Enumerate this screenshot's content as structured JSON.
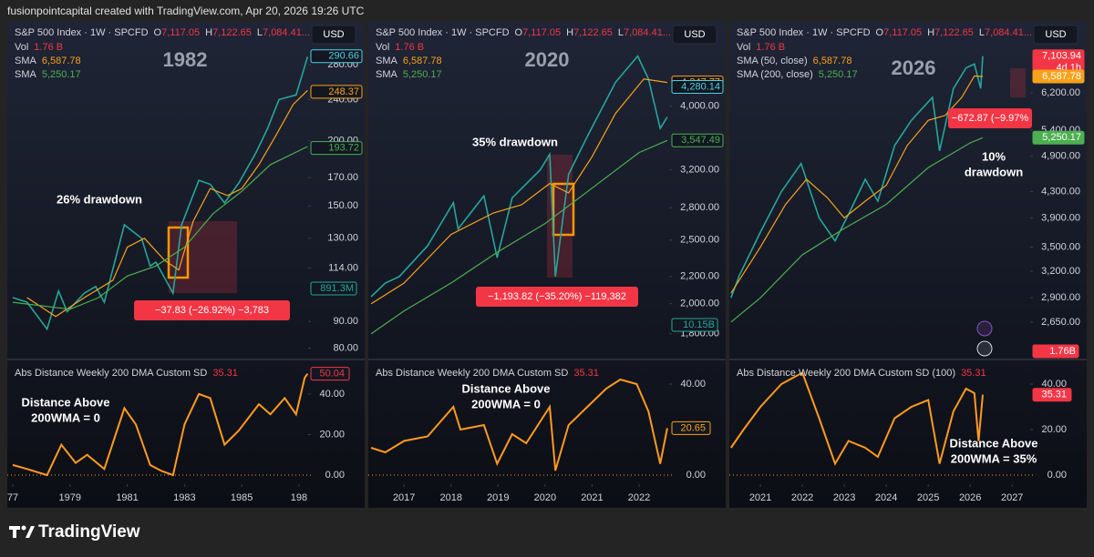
{
  "header": "fusionpointcapital created with TradingView.com, Apr 20, 2026 19:26 UTC",
  "footer": {
    "logo": "TradingView"
  },
  "chart_data": [
    {
      "type": "line",
      "legend": {
        "symbol": "S&P 500 Index · 1W · SPCFD",
        "o_label": "O",
        "o": "7,117.05",
        "h_label": "H",
        "h": "7,122.65",
        "l_label": "L",
        "l": "7,084.41...",
        "vol_label": "Vol",
        "vol": "1.76 B",
        "sma1_label": "SMA",
        "sma1": "6,587.78",
        "sma2_label": "SMA",
        "sma2": "5,250.17"
      },
      "currency": "USD",
      "title": "1982",
      "annotation": [
        "26% drawdown"
      ],
      "measure": "−37.83 (−26.92%) −3,783",
      "log": true,
      "xlim": [
        1976.81,
        1987.32
      ],
      "xticks": [
        {
          "value": 1977,
          "label": "77"
        },
        1979,
        1981,
        1983,
        1985,
        {
          "value": 1987,
          "label": "198"
        }
      ],
      "ylim": [
        77,
        333
      ],
      "yticks": [
        {
          "value": 80,
          "label": "80.00"
        },
        {
          "value": 90,
          "label": "90.00"
        },
        {
          "value": 114,
          "label": "114.00"
        },
        {
          "value": 130,
          "label": "130.00"
        },
        {
          "value": 150,
          "label": "150.00"
        },
        {
          "value": 170,
          "label": "170.00"
        },
        {
          "value": 200,
          "label": "200.00"
        },
        {
          "value": 240,
          "label": "240.00"
        },
        {
          "value": 280,
          "label": "280.00"
        }
      ],
      "badges": [
        {
          "value": 290.66,
          "label": "290.66",
          "color": "#4dd0e1",
          "filled": false
        },
        {
          "value": 248.37,
          "label": "248.37",
          "color": "#f7a21b",
          "filled": false
        },
        {
          "value": 193.72,
          "label": "193.72",
          "color": "#4caf50",
          "filled": false
        }
      ],
      "volume_badge": {
        "text": "891.3M",
        "color": "#26a69a",
        "filled": false
      },
      "series": [
        {
          "color": "#26a69a",
          "x": [
            1977.0,
            1977.5,
            1978.0,
            1978.2,
            1978.6,
            1978.9,
            1979.5,
            1979.9,
            1980.2,
            1980.9,
            1981.5,
            1981.8,
            1982.0,
            1982.6,
            1982.9,
            1983.5,
            1983.9,
            1984.4,
            1984.9,
            1985.5,
            1985.9,
            1986.3,
            1986.9,
            1987.3
          ],
          "values": [
            100,
            98,
            90,
            87,
            103,
            94,
            102,
            105,
            98,
            138,
            130,
            115,
            117,
            102,
            138,
            168,
            165,
            152,
            166,
            190,
            211,
            240,
            245,
            290
          ]
        },
        {
          "color": "#f7a21b",
          "x": [
            1977.5,
            1978.5,
            1979.5,
            1980.5,
            1981.0,
            1981.6,
            1982.3,
            1982.8,
            1983.3,
            1983.9,
            1984.5,
            1985.0,
            1985.6,
            1986.2,
            1986.8,
            1987.3
          ],
          "values": [
            100,
            92,
            100,
            108,
            125,
            130,
            118,
            113,
            140,
            162,
            157,
            162,
            180,
            205,
            235,
            250
          ]
        },
        {
          "color": "#4caf50",
          "x": [
            1977.0,
            1979.0,
            1980.0,
            1981.0,
            1982.0,
            1983.0,
            1984.0,
            1985.0,
            1986.0,
            1987.3
          ],
          "values": [
            98,
            95,
            100,
            110,
            115,
            125,
            145,
            160,
            180,
            195
          ]
        }
      ],
      "indicator": {
        "title": "Abs Distance Weekly 200 DMA Custom SD",
        "value": "35.31",
        "annotation": [
          "Distance Above",
          "200WMA = 0"
        ],
        "color": "#ff9a1f",
        "ylim": [
          -4.5,
          55.7
        ],
        "yticks": [
          {
            "value": 0,
            "label": "0.00"
          },
          {
            "value": 20,
            "label": "20.00"
          },
          {
            "value": 40,
            "label": "40.00"
          }
        ],
        "badge": {
          "value": 50.04,
          "label": "50.04",
          "color": "#f23645",
          "filled": false
        },
        "x": [
          1977.0,
          1977.5,
          1978.2,
          1978.7,
          1979.2,
          1979.6,
          1980.2,
          1980.9,
          1981.3,
          1981.8,
          1982.2,
          1982.6,
          1983.0,
          1983.5,
          1983.9,
          1984.4,
          1984.9,
          1985.6,
          1986.0,
          1986.5,
          1986.9,
          1987.2,
          1987.3
        ],
        "values": [
          5,
          3,
          0,
          15,
          6,
          10,
          3,
          33,
          25,
          5,
          2,
          0,
          25,
          40,
          38,
          15,
          22,
          35,
          30,
          38,
          30,
          48,
          50.04
        ]
      }
    },
    {
      "type": "line",
      "legend": {
        "symbol": "S&P 500 Index · 1W · SPCFD",
        "o_label": "O",
        "o": "7,117.05",
        "h_label": "H",
        "h": "7,122.65",
        "l_label": "L",
        "l": "7,084.41...",
        "vol_label": "Vol",
        "vol": "1.76 B",
        "sma1_label": "SMA",
        "sma1": "6,587.78",
        "sma2_label": "SMA",
        "sma2": "5,250.17"
      },
      "currency": "USD",
      "title": "2020",
      "annotation": [
        "35% drawdown"
      ],
      "measure": "−1,193.82 (−35.20%) −119,382",
      "log": true,
      "xlim": [
        2016.24,
        2022.64
      ],
      "xticks": [
        2017,
        2018,
        2019,
        2020,
        2021,
        2022
      ],
      "ylim": [
        1660,
        5310
      ],
      "yticks": [
        {
          "value": 1800,
          "label": "1,800.00"
        },
        {
          "value": 2000,
          "label": "2,000.00"
        },
        {
          "value": 2200,
          "label": "2,200.00"
        },
        {
          "value": 2500,
          "label": "2,500.00"
        },
        {
          "value": 2800,
          "label": "2,800.00"
        },
        {
          "value": 3200,
          "label": "3,200.00"
        },
        {
          "value": 4000,
          "label": "4,000.00"
        }
      ],
      "badges": [
        {
          "value": 4347.77,
          "label": "4,347.77",
          "color": "#f7a21b",
          "filled": false
        },
        {
          "value": 4280.14,
          "label": "4,280.14",
          "color": "#4dd0e1",
          "filled": false
        },
        {
          "value": 3547.49,
          "label": "3,547.49",
          "color": "#4caf50",
          "filled": false
        }
      ],
      "volume_badge": {
        "text": "10.15B",
        "color": "#26a69a",
        "filled": false
      },
      "series": [
        {
          "color": "#26a69a",
          "x": [
            2016.3,
            2016.6,
            2016.9,
            2017.5,
            2018.05,
            2018.15,
            2018.7,
            2018.98,
            2019.3,
            2019.9,
            2020.1,
            2020.22,
            2020.5,
            2020.9,
            2021.5,
            2021.97,
            2022.2,
            2022.45,
            2022.6
          ],
          "values": [
            2050,
            2150,
            2200,
            2450,
            2850,
            2600,
            2920,
            2350,
            2900,
            3200,
            3380,
            2200,
            3150,
            3600,
            4350,
            4770,
            4400,
            3700,
            3850
          ]
        },
        {
          "color": "#f7a21b",
          "x": [
            2016.3,
            2017.0,
            2018.0,
            2018.9,
            2019.5,
            2020.1,
            2020.5,
            2021.0,
            2021.5,
            2022.1,
            2022.6
          ],
          "values": [
            2000,
            2150,
            2550,
            2750,
            2830,
            3050,
            2950,
            3350,
            3900,
            4400,
            4347.77
          ]
        },
        {
          "color": "#4caf50",
          "x": [
            2016.3,
            2017.0,
            2018.0,
            2019.0,
            2020.0,
            2021.0,
            2022.0,
            2022.6
          ],
          "values": [
            1800,
            1950,
            2150,
            2400,
            2650,
            3000,
            3400,
            3547.49
          ]
        }
      ],
      "indicator": {
        "title": "Abs Distance Weekly 200 DMA Custom SD",
        "value": "35.31",
        "annotation": [
          "Distance Above",
          "200WMA = 0"
        ],
        "color": "#ff9a1f",
        "ylim": [
          -4,
          49.6
        ],
        "yticks": [
          {
            "value": 0,
            "label": "0.00"
          },
          {
            "value": 40,
            "label": "40.00"
          }
        ],
        "badge": {
          "value": 20.65,
          "label": "20.65",
          "color": "#f7a21b",
          "filled": false
        },
        "x": [
          2016.3,
          2016.6,
          2017.0,
          2017.5,
          2018.05,
          2018.2,
          2018.7,
          2018.98,
          2019.3,
          2019.6,
          2020.1,
          2020.22,
          2020.5,
          2020.9,
          2021.3,
          2021.6,
          2021.95,
          2022.2,
          2022.45,
          2022.6
        ],
        "values": [
          12,
          10,
          15,
          17,
          30,
          20,
          22,
          5,
          18,
          14,
          30,
          2,
          22,
          30,
          38,
          42,
          40,
          28,
          5,
          20.65
        ]
      }
    },
    {
      "type": "line",
      "legend": {
        "symbol": "S&P 500 Index · 1W · SPCFD",
        "o_label": "O",
        "o": "7,117.05",
        "h_label": "H",
        "h": "7,122.65",
        "l_label": "L",
        "l": "7,084.41...",
        "vol_label": "Vol",
        "vol": "1.76 B",
        "sma1_label": "SMA (50, close)",
        "sma1": "6,587.78",
        "sma2_label": "SMA (200, close)",
        "sma2": "5,250.17"
      },
      "currency": "USD",
      "title": "2026",
      "annotation": [
        "10%",
        "drawdown"
      ],
      "measure": "−672.87 (−9.97%",
      "log": true,
      "xlim": [
        2020.26,
        2027.43
      ],
      "xticks": [
        2021,
        2022,
        2023,
        2024,
        2025,
        2026,
        2027
      ],
      "ylim": [
        2330,
        7960
      ],
      "yticks": [
        {
          "value": 2650,
          "label": "2,650.00"
        },
        {
          "value": 2900,
          "label": "2,900.00"
        },
        {
          "value": 3200,
          "label": "3,200.00"
        },
        {
          "value": 3500,
          "label": "3,500.00"
        },
        {
          "value": 3900,
          "label": "3,900.00"
        },
        {
          "value": 4300,
          "label": "4,300.00"
        },
        {
          "value": 4900,
          "label": "4,900.00"
        },
        {
          "value": 5400,
          "label": "5,400.00"
        },
        {
          "value": 6200,
          "label": "6,200.00"
        }
      ],
      "badges": [
        {
          "value": 7103.94,
          "label": "7,103.94",
          "sub": "4d 1h",
          "color": "#f23645",
          "filled": true
        },
        {
          "value": 6587.78,
          "label": "6,587.78",
          "color": "#f7a21b",
          "filled": true
        },
        {
          "value": 5250.17,
          "label": "5,250.17",
          "color": "#4caf50",
          "filled": true
        }
      ],
      "volume_badge": {
        "text": "1.76B",
        "color": "#f23645",
        "filled": true
      },
      "series": [
        {
          "color": "#26a69a",
          "x": [
            2020.3,
            2020.5,
            2021.0,
            2021.5,
            2021.97,
            2022.4,
            2022.78,
            2023.1,
            2023.5,
            2023.8,
            2024.2,
            2024.6,
            2025.1,
            2025.27,
            2025.6,
            2025.9,
            2026.1,
            2026.25,
            2026.3
          ],
          "values": [
            2900,
            3150,
            3700,
            4300,
            4770,
            3900,
            3580,
            3950,
            4500,
            4150,
            5100,
            5600,
            6100,
            5000,
            6300,
            6800,
            6900,
            6300,
            7103.94
          ]
        },
        {
          "color": "#f7a21b",
          "x": [
            2020.3,
            2021.0,
            2021.6,
            2022.1,
            2022.6,
            2023.0,
            2023.5,
            2024.0,
            2024.5,
            2025.0,
            2025.4,
            2025.8,
            2026.1,
            2026.3
          ],
          "values": [
            2950,
            3500,
            4100,
            4500,
            4200,
            3900,
            4150,
            4400,
            5100,
            5600,
            5700,
            6100,
            6600,
            6587.78
          ]
        },
        {
          "color": "#4caf50",
          "x": [
            2020.3,
            2021.0,
            2022.0,
            2023.0,
            2024.0,
            2025.0,
            2026.0,
            2026.3
          ],
          "values": [
            2650,
            2900,
            3400,
            3750,
            4100,
            4700,
            5150,
            5250.17
          ]
        }
      ],
      "indicator": {
        "title": "Abs Distance Weekly 200 DMA Custom SD (100)",
        "value": "35.31",
        "annotation": [
          "Distance Above",
          "200WMA = 35%"
        ],
        "color": "#ff9a1f",
        "ylim": [
          -4,
          49.6
        ],
        "yticks": [
          {
            "value": 0,
            "label": "0.00"
          },
          {
            "value": 20,
            "label": "20.00"
          },
          {
            "value": 40,
            "label": "40.00"
          }
        ],
        "badge": {
          "value": 35.31,
          "label": "35.31",
          "color": "#f23645",
          "filled": true
        },
        "x": [
          2020.3,
          2020.6,
          2021.0,
          2021.5,
          2022.0,
          2022.4,
          2022.78,
          2023.1,
          2023.5,
          2023.8,
          2024.2,
          2024.6,
          2025.0,
          2025.27,
          2025.6,
          2025.9,
          2026.1,
          2026.2,
          2026.3
        ],
        "values": [
          12,
          20,
          30,
          40,
          45,
          25,
          5,
          15,
          12,
          8,
          25,
          30,
          33,
          5,
          28,
          38,
          36,
          15,
          35.31
        ]
      }
    }
  ]
}
